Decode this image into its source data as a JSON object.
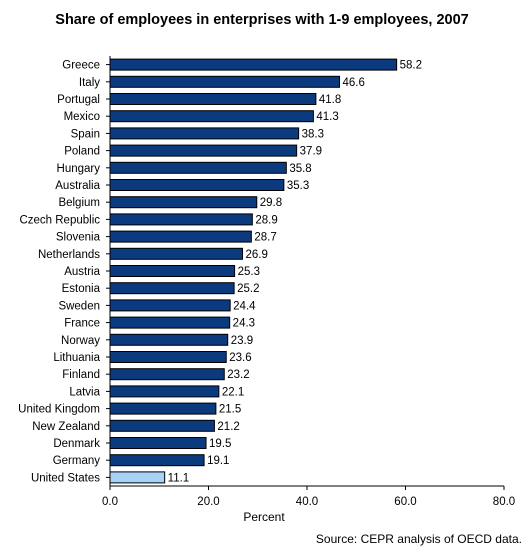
{
  "chart_data": {
    "type": "bar",
    "orientation": "horizontal",
    "title": "Share of employees in enterprises with 1-9 employees, 2007",
    "xlabel": "Percent",
    "ylabel": "",
    "xlim": [
      0,
      80
    ],
    "xticks": [
      "0.0",
      "20.0",
      "40.0",
      "60.0",
      "80.0"
    ],
    "grid": false,
    "source": "Source: CEPR analysis of OECD data.",
    "colors": {
      "bar": "#0b3a7e",
      "highlight": "#a8d2f5",
      "outline": "#000000"
    },
    "highlight_category": "United States",
    "categories": [
      "Greece",
      "Italy",
      "Portugal",
      "Mexico",
      "Spain",
      "Poland",
      "Hungary",
      "Australia",
      "Belgium",
      "Czech Republic",
      "Slovenia",
      "Netherlands",
      "Austria",
      "Estonia",
      "Sweden",
      "France",
      "Norway",
      "Lithuania",
      "Finland",
      "Latvia",
      "United Kingdom",
      "New Zealand",
      "Denmark",
      "Germany",
      "United States"
    ],
    "values": [
      58.2,
      46.6,
      41.8,
      41.3,
      38.3,
      37.9,
      35.8,
      35.3,
      29.8,
      28.9,
      28.7,
      26.9,
      25.3,
      25.2,
      24.4,
      24.3,
      23.9,
      23.6,
      23.2,
      22.1,
      21.5,
      21.2,
      19.5,
      19.1,
      11.1
    ],
    "value_labels": [
      "58.2",
      "46.6",
      "41.8",
      "41.3",
      "38.3",
      "37.9",
      "35.8",
      "35.3",
      "29.8",
      "28.9",
      "28.7",
      "26.9",
      "25.3",
      "25.2",
      "24.4",
      "24.3",
      "23.9",
      "23.6",
      "23.2",
      "22.1",
      "21.5",
      "21.2",
      "19.5",
      "19.1",
      "11.1"
    ]
  }
}
